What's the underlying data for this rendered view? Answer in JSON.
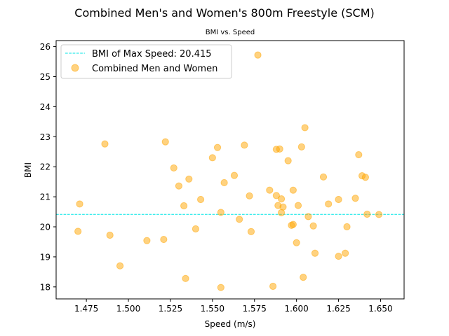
{
  "chart_data": {
    "type": "scatter",
    "title": "Combined Men's and Women's 800m Freestyle (SCM)",
    "subtitle": "BMI vs. Speed",
    "xlabel": "Speed (m/s)",
    "ylabel": "BMI",
    "xlim": [
      1.457,
      1.664
    ],
    "ylim": [
      17.6,
      26.2
    ],
    "xticks": [
      "1.475",
      "1.500",
      "1.525",
      "1.550",
      "1.575",
      "1.600",
      "1.625",
      "1.650"
    ],
    "yticks": [
      "18",
      "19",
      "20",
      "21",
      "22",
      "23",
      "24",
      "25",
      "26"
    ],
    "reference_line": {
      "label": "BMI of Max Speed: 20.415",
      "y": 20.415,
      "color": "#00e5e5",
      "style": "dashed"
    },
    "series": [
      {
        "name": "Combined Men and Women",
        "color": "#ffa500",
        "points": [
          [
            1.47,
            19.85
          ],
          [
            1.471,
            20.76
          ],
          [
            1.486,
            22.76
          ],
          [
            1.489,
            19.72
          ],
          [
            1.495,
            18.7
          ],
          [
            1.511,
            19.54
          ],
          [
            1.521,
            19.58
          ],
          [
            1.522,
            22.83
          ],
          [
            1.527,
            21.96
          ],
          [
            1.53,
            21.36
          ],
          [
            1.533,
            20.7
          ],
          [
            1.534,
            18.28
          ],
          [
            1.536,
            21.59
          ],
          [
            1.54,
            19.93
          ],
          [
            1.543,
            20.91
          ],
          [
            1.55,
            22.3
          ],
          [
            1.553,
            22.64
          ],
          [
            1.555,
            20.48
          ],
          [
            1.555,
            17.98
          ],
          [
            1.557,
            21.47
          ],
          [
            1.563,
            21.71
          ],
          [
            1.566,
            20.25
          ],
          [
            1.569,
            22.72
          ],
          [
            1.572,
            21.03
          ],
          [
            1.573,
            19.84
          ],
          [
            1.577,
            25.72
          ],
          [
            1.584,
            21.22
          ],
          [
            1.586,
            18.02
          ],
          [
            1.588,
            21.04
          ],
          [
            1.588,
            22.58
          ],
          [
            1.589,
            20.71
          ],
          [
            1.59,
            22.59
          ],
          [
            1.591,
            20.47
          ],
          [
            1.591,
            20.93
          ],
          [
            1.592,
            20.66
          ],
          [
            1.595,
            22.2
          ],
          [
            1.597,
            20.05
          ],
          [
            1.598,
            21.22
          ],
          [
            1.598,
            20.08
          ],
          [
            1.6,
            19.47
          ],
          [
            1.601,
            20.71
          ],
          [
            1.603,
            22.66
          ],
          [
            1.604,
            18.32
          ],
          [
            1.605,
            23.3
          ],
          [
            1.607,
            20.34
          ],
          [
            1.61,
            20.03
          ],
          [
            1.611,
            19.12
          ],
          [
            1.616,
            21.66
          ],
          [
            1.619,
            20.76
          ],
          [
            1.625,
            20.91
          ],
          [
            1.625,
            19.02
          ],
          [
            1.629,
            19.12
          ],
          [
            1.63,
            20.0
          ],
          [
            1.635,
            20.95
          ],
          [
            1.637,
            22.4
          ],
          [
            1.639,
            21.7
          ],
          [
            1.641,
            21.65
          ],
          [
            1.642,
            20.42
          ],
          [
            1.649,
            20.41
          ]
        ]
      }
    ],
    "grid": false,
    "legend": "top-left"
  }
}
